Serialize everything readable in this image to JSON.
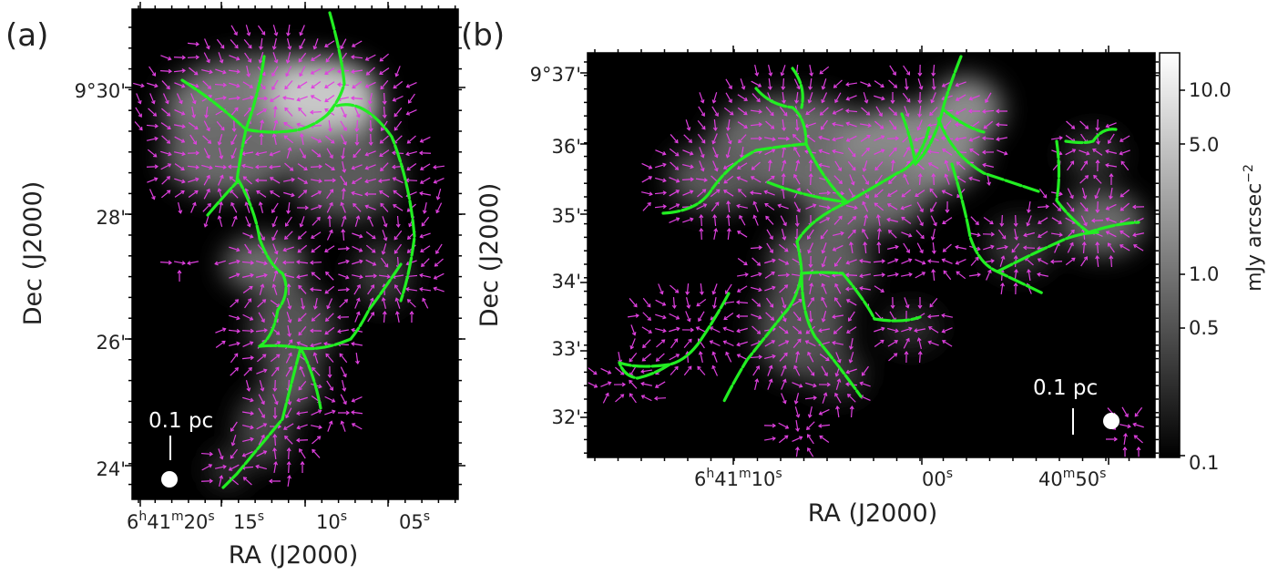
{
  "chart_data": [
    {
      "type": "heatmap",
      "panel_label": "(a)",
      "xlabel": "RA (J2000)",
      "ylabel": "Dec (J2000)",
      "x_ticks": [
        {
          "h": "6",
          "hu": "h",
          "m": "41",
          "mu": "m",
          "s": "20",
          "su": "s"
        },
        {
          "s": "15",
          "su": "s"
        },
        {
          "s": "10",
          "su": "s"
        },
        {
          "s": "05",
          "su": "s"
        }
      ],
      "y_ticks": [
        "9°30'",
        "28'",
        "26'",
        "24'"
      ],
      "scale_bar_label": "0.1 pc",
      "overlays": [
        "polarization vectors (magenta)",
        "filament skeletons (green)"
      ]
    },
    {
      "type": "heatmap",
      "panel_label": "(b)",
      "xlabel": "RA (J2000)",
      "ylabel": "Dec (J2000)",
      "x_ticks": [
        {
          "h": "6",
          "hu": "h",
          "m": "41",
          "mu": "m",
          "s": "10",
          "su": "s"
        },
        {
          "s": "00",
          "su": "s"
        },
        {
          "m": "40",
          "mu": "m",
          "s": "50",
          "su": "s"
        }
      ],
      "y_ticks": [
        "9°37'",
        "36'",
        "35'",
        "34'",
        "33'",
        "32'"
      ],
      "scale_bar_label": "0.1 pc",
      "colorbar": {
        "label": "mJy arcsec",
        "label_exp": "−2",
        "scale": "log",
        "range": [
          0.1,
          15
        ],
        "ticks": [
          "10.0",
          "5.0",
          "1.0",
          "0.5",
          "0.1"
        ]
      },
      "overlays": [
        "polarization vectors (magenta)",
        "filament skeletons (green)"
      ]
    }
  ],
  "colors": {
    "vector": "#e040e0",
    "filament": "#22ee22",
    "background": "#000000"
  }
}
